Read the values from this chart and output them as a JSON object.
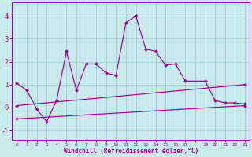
{
  "xlabel": "Windchill (Refroidissement éolien,°C)",
  "xlim": [
    -0.5,
    23.5
  ],
  "ylim": [
    -1.4,
    4.6
  ],
  "xtick_vals": [
    0,
    1,
    2,
    3,
    4,
    5,
    6,
    7,
    8,
    9,
    10,
    11,
    12,
    13,
    14,
    15,
    16,
    17,
    18,
    19,
    20,
    21,
    22,
    23
  ],
  "xtick_labels": [
    "0",
    "1",
    "2",
    "3",
    "4",
    "5",
    "6",
    "7",
    "8",
    "9",
    "10",
    "11",
    "12",
    "13",
    "14",
    "15",
    "16",
    "17",
    "",
    "19",
    "20",
    "21",
    "22",
    "23"
  ],
  "yticks": [
    -1,
    0,
    1,
    2,
    3,
    4
  ],
  "bg_color": "#c8eaea",
  "grid_color": "#9ecece",
  "line_color": "#990099",
  "line1_x": [
    0,
    1,
    2,
    3,
    4,
    5,
    6,
    7,
    8,
    9,
    10,
    11,
    12,
    13,
    14,
    15,
    16,
    17,
    19,
    20,
    21,
    22,
    23
  ],
  "line1_y": [
    1.05,
    0.75,
    -0.07,
    -0.62,
    0.3,
    2.45,
    0.75,
    1.9,
    1.9,
    1.5,
    1.4,
    3.7,
    4.0,
    2.55,
    2.45,
    1.85,
    1.9,
    1.15,
    1.15,
    0.3,
    0.2,
    0.2,
    0.15
  ],
  "line2_x": [
    0,
    23
  ],
  "line2_y": [
    0.08,
    1.0
  ],
  "line3_x": [
    0,
    23
  ],
  "line3_y": [
    -0.5,
    0.08
  ]
}
